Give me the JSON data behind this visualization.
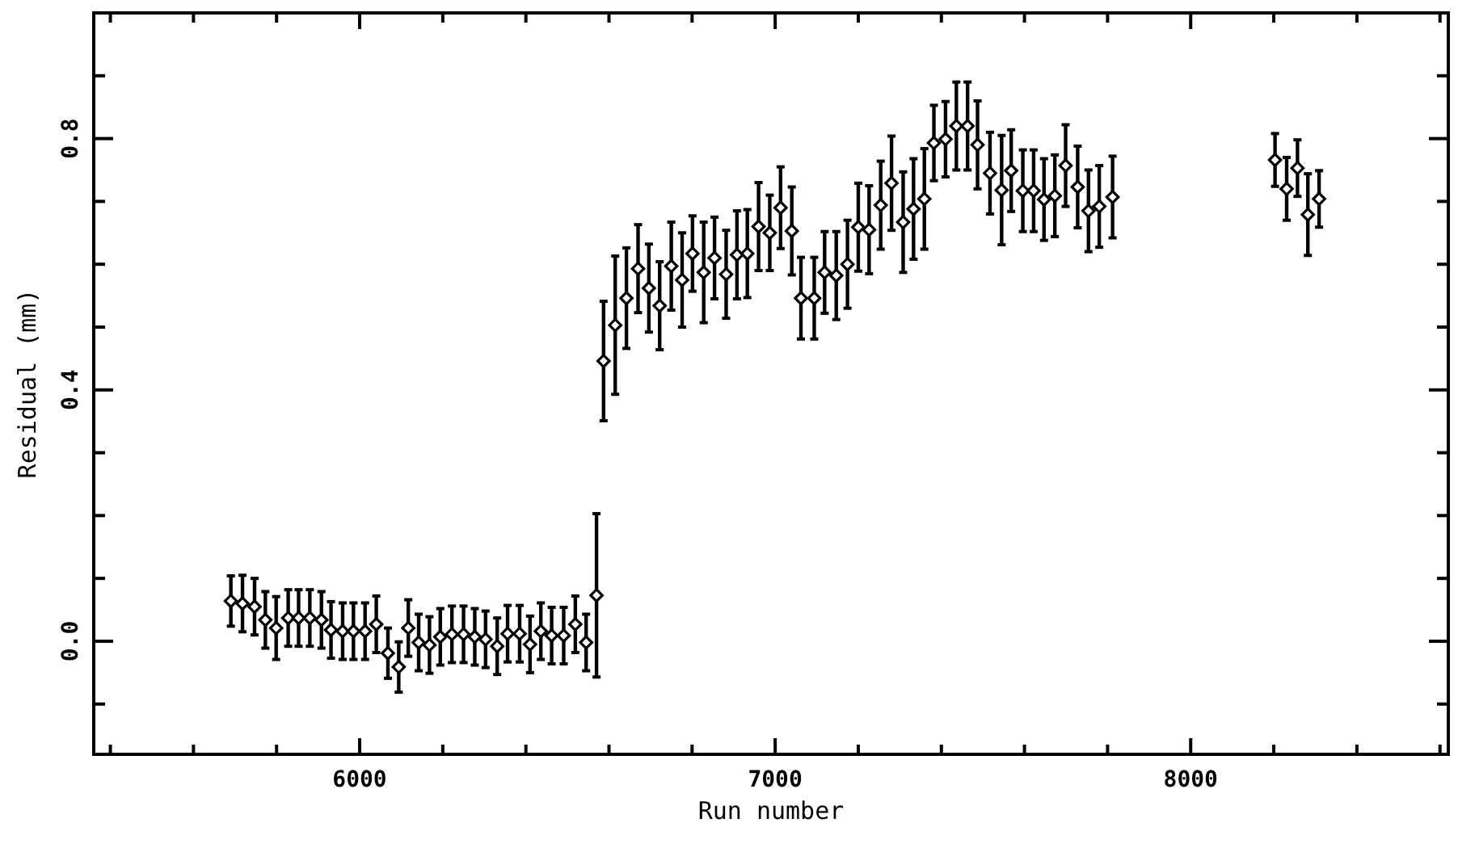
{
  "chart_data": {
    "type": "scatter",
    "xlabel": "Run number",
    "ylabel": "Residual (mm)",
    "marker": "diamond",
    "xlim": [
      5360,
      8620
    ],
    "ylim": [
      -0.18,
      1.0
    ],
    "xticks": [
      {
        "value": 5400,
        "label": null
      },
      {
        "value": 5600,
        "label": null
      },
      {
        "value": 5800,
        "label": null
      },
      {
        "value": 6000,
        "label": "6000"
      },
      {
        "value": 6200,
        "label": null
      },
      {
        "value": 6400,
        "label": null
      },
      {
        "value": 6600,
        "label": null
      },
      {
        "value": 6800,
        "label": null
      },
      {
        "value": 7000,
        "label": "7000"
      },
      {
        "value": 7200,
        "label": null
      },
      {
        "value": 7400,
        "label": null
      },
      {
        "value": 7600,
        "label": null
      },
      {
        "value": 7800,
        "label": null
      },
      {
        "value": 8000,
        "label": "8000"
      },
      {
        "value": 8200,
        "label": null
      },
      {
        "value": 8400,
        "label": null
      },
      {
        "value": 8600,
        "label": null
      }
    ],
    "yticks": [
      {
        "value": -0.1,
        "label": null
      },
      {
        "value": 0,
        "label": "0.0"
      },
      {
        "value": 0.1,
        "label": null
      },
      {
        "value": 0.2,
        "label": null
      },
      {
        "value": 0.3,
        "label": null
      },
      {
        "value": 0.4,
        "label": "0.4"
      },
      {
        "value": 0.5,
        "label": null
      },
      {
        "value": 0.6,
        "label": null
      },
      {
        "value": 0.7,
        "label": null
      },
      {
        "value": 0.8,
        "label": "0.8"
      },
      {
        "value": 0.9,
        "label": null
      }
    ],
    "series": [
      {
        "color": "#000000",
        "x": [
          5690,
          5718,
          5747,
          5773,
          5799,
          5828,
          5853,
          5880,
          5908,
          5931,
          5959,
          5985,
          6013,
          6040,
          6068,
          6094,
          6117,
          6142,
          6168,
          6194,
          6222,
          6250,
          6277,
          6303,
          6331,
          6356,
          6385,
          6410,
          6436,
          6462,
          6491,
          6519,
          6545,
          6570,
          6587,
          6615,
          6642,
          6670,
          6696,
          6722,
          6750,
          6776,
          6801,
          6828,
          6854,
          6882,
          6908,
          6933,
          6960,
          6987,
          7013,
          7040,
          7062,
          7094,
          7119,
          7147,
          7174,
          7200,
          7226,
          7254,
          7280,
          7308,
          7333,
          7359,
          7382,
          7410,
          7436,
          7463,
          7487,
          7517,
          7545,
          7568,
          7596,
          7622,
          7647,
          7673,
          7699,
          7728,
          7754,
          7780,
          7812,
          8203,
          8231,
          8257,
          8282,
          8309
        ],
        "values": [
          0.064,
          0.06,
          0.055,
          0.034,
          0.021,
          0.037,
          0.037,
          0.037,
          0.034,
          0.018,
          0.016,
          0.016,
          0.016,
          0.027,
          -0.019,
          -0.041,
          0.021,
          -0.002,
          -0.006,
          0.007,
          0.011,
          0.011,
          0.007,
          0.003,
          -0.008,
          0.012,
          0.012,
          -0.005,
          0.016,
          0.009,
          0.009,
          0.027,
          -0.002,
          0.073,
          0.446,
          0.503,
          0.546,
          0.593,
          0.562,
          0.534,
          0.597,
          0.575,
          0.617,
          0.587,
          0.61,
          0.584,
          0.615,
          0.617,
          0.66,
          0.65,
          0.69,
          0.653,
          0.546,
          0.546,
          0.587,
          0.582,
          0.6,
          0.659,
          0.655,
          0.694,
          0.729,
          0.667,
          0.688,
          0.704,
          0.793,
          0.799,
          0.82,
          0.82,
          0.79,
          0.745,
          0.718,
          0.749,
          0.717,
          0.717,
          0.703,
          0.709,
          0.757,
          0.723,
          0.685,
          0.692,
          0.707,
          0.766,
          0.72,
          0.753,
          0.679,
          0.704
        ],
        "errors": [
          0.04,
          0.045,
          0.045,
          0.045,
          0.05,
          0.045,
          0.045,
          0.045,
          0.045,
          0.045,
          0.045,
          0.045,
          0.045,
          0.045,
          0.04,
          0.04,
          0.045,
          0.045,
          0.045,
          0.045,
          0.045,
          0.045,
          0.045,
          0.045,
          0.045,
          0.045,
          0.045,
          0.045,
          0.045,
          0.045,
          0.045,
          0.045,
          0.045,
          0.13,
          0.095,
          0.11,
          0.08,
          0.07,
          0.07,
          0.07,
          0.07,
          0.075,
          0.06,
          0.08,
          0.065,
          0.07,
          0.07,
          0.07,
          0.07,
          0.06,
          0.065,
          0.07,
          0.065,
          0.065,
          0.065,
          0.07,
          0.07,
          0.07,
          0.07,
          0.07,
          0.075,
          0.08,
          0.08,
          0.08,
          0.06,
          0.06,
          0.07,
          0.07,
          0.07,
          0.065,
          0.087,
          0.065,
          0.065,
          0.065,
          0.065,
          0.065,
          0.065,
          0.065,
          0.065,
          0.065,
          0.065,
          0.042,
          0.05,
          0.045,
          0.065,
          0.045
        ]
      }
    ]
  }
}
